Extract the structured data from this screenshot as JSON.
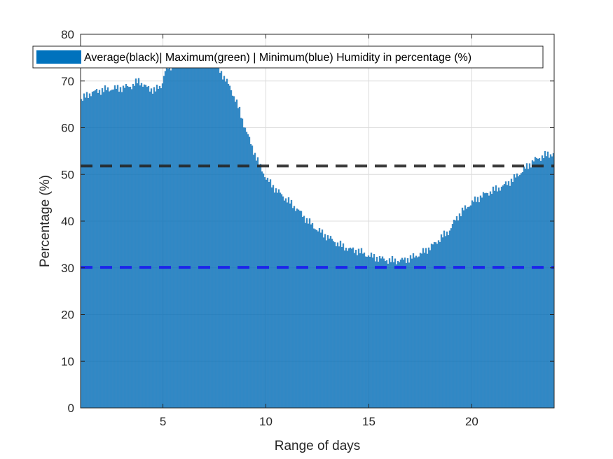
{
  "chart_data": {
    "type": "area",
    "title": "",
    "xlabel": "Range of days",
    "ylabel": "Percentage (%)",
    "xlim": [
      1,
      24
    ],
    "ylim": [
      0,
      80
    ],
    "xticks": [
      5,
      10,
      15,
      20
    ],
    "yticks": [
      0,
      10,
      20,
      30,
      40,
      50,
      60,
      70,
      80
    ],
    "grid": true,
    "legend": {
      "location": "top",
      "entries": [
        "Average(black)| Maximum(green) | Minimum(blue) Humidity in percentage (%)"
      ]
    },
    "series": [
      {
        "name": "Average(black)| Maximum(green) | Minimum(blue) Humidity in percentage (%)",
        "style": "bar-fill",
        "color": "#0072BD",
        "x": [
          1,
          1.5,
          2,
          2.5,
          3,
          3.5,
          3.8,
          4.2,
          4.6,
          4.9,
          5.1,
          5.5,
          6,
          6.5,
          7,
          7.5,
          8,
          8.5,
          8.8,
          9.2,
          9.6,
          10,
          10.5,
          11,
          11.5,
          12,
          12.5,
          13,
          13.5,
          14,
          14.5,
          15,
          15.5,
          16,
          16.5,
          17,
          17.5,
          18,
          18.5,
          18.9,
          19.2,
          19.6,
          20,
          20.5,
          21,
          21.5,
          22,
          22.5,
          23,
          23.5,
          24
        ],
        "y": [
          66,
          67.5,
          68,
          68.3,
          68.5,
          69,
          70,
          68.5,
          68,
          69,
          72.5,
          73.5,
          74.5,
          75,
          74.5,
          73.5,
          70.5,
          66,
          62,
          57,
          52.5,
          49,
          46.5,
          44.5,
          42.5,
          40,
          38,
          36.5,
          35,
          34,
          33.5,
          32.5,
          32,
          31.5,
          31.5,
          32,
          33,
          34.5,
          36.5,
          38,
          40.5,
          42.5,
          44,
          45.5,
          46.5,
          47.5,
          49,
          51,
          53,
          54,
          54.5
        ]
      },
      {
        "name": "",
        "style": "dashed",
        "color": "#262626",
        "y_constant": 51.8
      },
      {
        "name": "",
        "style": "dashed",
        "color": "#1a1aee",
        "y_constant": 30.1
      }
    ]
  }
}
